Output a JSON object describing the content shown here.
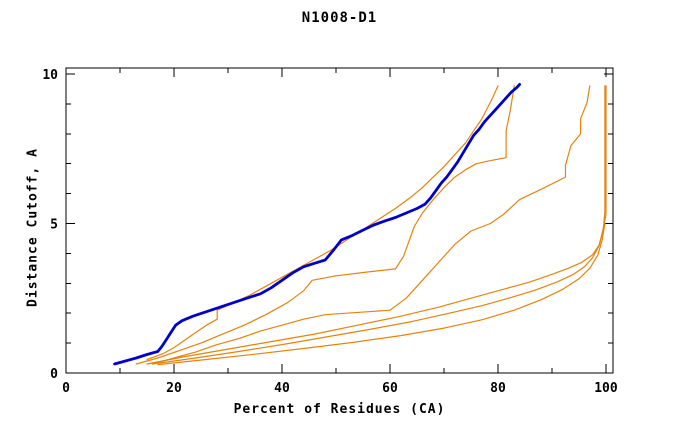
{
  "chart_data": {
    "type": "line",
    "title": "N1008-D1",
    "xlabel": "Percent of Residues (CA)",
    "ylabel": "Distance Cutoff, A",
    "xlim": [
      0,
      101.3
    ],
    "ylim": [
      0,
      10.2
    ],
    "x_major_ticks": [
      0,
      20,
      40,
      60,
      80,
      100
    ],
    "x_minor_ticks": [
      10,
      30,
      50,
      70,
      90
    ],
    "y_major_ticks": [
      0,
      5,
      10
    ],
    "y_minor_ticks": [
      1,
      2,
      3,
      4,
      6,
      7,
      8,
      9
    ],
    "grid": false,
    "legend": "none",
    "frame_color": "#000000",
    "series": [
      {
        "name": "orange-model-1",
        "color": "#e8820c",
        "width": 1.2,
        "points": [
          [
            15,
            0.45
          ],
          [
            18,
            0.65
          ],
          [
            20,
            0.85
          ],
          [
            22,
            1.1
          ],
          [
            24,
            1.35
          ],
          [
            26,
            1.6
          ],
          [
            28,
            1.8
          ],
          [
            28,
            2.1
          ],
          [
            31,
            2.35
          ],
          [
            34,
            2.6
          ],
          [
            37,
            2.9
          ],
          [
            40,
            3.2
          ],
          [
            43,
            3.5
          ],
          [
            46,
            3.8
          ],
          [
            49,
            4.1
          ],
          [
            52,
            4.45
          ],
          [
            55,
            4.8
          ],
          [
            58,
            5.15
          ],
          [
            61,
            5.5
          ],
          [
            64,
            5.9
          ],
          [
            66,
            6.2
          ],
          [
            68,
            6.55
          ],
          [
            70,
            6.9
          ],
          [
            72,
            7.3
          ],
          [
            74,
            7.7
          ],
          [
            75.5,
            8.1
          ],
          [
            77,
            8.5
          ],
          [
            78,
            8.85
          ],
          [
            79,
            9.2
          ],
          [
            80,
            9.6
          ]
        ]
      },
      {
        "name": "orange-model-2",
        "color": "#e8820c",
        "width": 1.2,
        "points": [
          [
            13,
            0.3
          ],
          [
            17,
            0.5
          ],
          [
            21,
            0.75
          ],
          [
            25,
            1.0
          ],
          [
            29,
            1.3
          ],
          [
            33,
            1.6
          ],
          [
            37,
            1.95
          ],
          [
            41,
            2.35
          ],
          [
            44,
            2.75
          ],
          [
            45.6,
            3.1
          ],
          [
            50,
            3.25
          ],
          [
            56,
            3.38
          ],
          [
            61,
            3.48
          ],
          [
            62.5,
            3.9
          ],
          [
            63.5,
            4.4
          ],
          [
            64.5,
            4.9
          ],
          [
            66,
            5.35
          ],
          [
            68,
            5.8
          ],
          [
            70,
            6.2
          ],
          [
            72,
            6.55
          ],
          [
            74,
            6.8
          ],
          [
            76,
            7.0
          ],
          [
            78.5,
            7.1
          ],
          [
            81.5,
            7.2
          ],
          [
            81.5,
            8.1
          ],
          [
            82.3,
            8.8
          ],
          [
            83,
            9.6
          ]
        ]
      },
      {
        "name": "orange-model-3",
        "color": "#e8820c",
        "width": 1.2,
        "points": [
          [
            16,
            0.3
          ],
          [
            20,
            0.5
          ],
          [
            24,
            0.7
          ],
          [
            28,
            0.95
          ],
          [
            32,
            1.15
          ],
          [
            36,
            1.4
          ],
          [
            40,
            1.6
          ],
          [
            44,
            1.8
          ],
          [
            48,
            1.95
          ],
          [
            52,
            2.0
          ],
          [
            56,
            2.05
          ],
          [
            60,
            2.1
          ],
          [
            63,
            2.5
          ],
          [
            66,
            3.1
          ],
          [
            69,
            3.7
          ],
          [
            72,
            4.3
          ],
          [
            75,
            4.75
          ],
          [
            78.6,
            5.0
          ],
          [
            81,
            5.3
          ],
          [
            84,
            5.8
          ],
          [
            87.5,
            6.1
          ],
          [
            92.5,
            6.55
          ],
          [
            92.5,
            6.95
          ],
          [
            93.5,
            7.6
          ],
          [
            95.3,
            8.0
          ],
          [
            95.3,
            8.5
          ],
          [
            96.5,
            9.05
          ],
          [
            97,
            9.6
          ]
        ]
      },
      {
        "name": "orange-model-4",
        "color": "#e8820c",
        "width": 1.2,
        "points": [
          [
            15,
            0.3
          ],
          [
            22,
            0.55
          ],
          [
            30,
            0.8
          ],
          [
            38,
            1.05
          ],
          [
            46,
            1.3
          ],
          [
            54,
            1.6
          ],
          [
            62,
            1.9
          ],
          [
            69,
            2.2
          ],
          [
            75,
            2.5
          ],
          [
            81,
            2.8
          ],
          [
            86,
            3.05
          ],
          [
            90,
            3.3
          ],
          [
            93,
            3.5
          ],
          [
            95.5,
            3.7
          ],
          [
            97.5,
            3.95
          ],
          [
            98.8,
            4.3
          ],
          [
            99.5,
            4.8
          ],
          [
            99.8,
            5.4
          ],
          [
            99.8,
            9.6
          ]
        ]
      },
      {
        "name": "orange-model-5",
        "color": "#e8820c",
        "width": 1.2,
        "points": [
          [
            16,
            0.3
          ],
          [
            24,
            0.5
          ],
          [
            32,
            0.72
          ],
          [
            40,
            0.95
          ],
          [
            48,
            1.2
          ],
          [
            56,
            1.45
          ],
          [
            64,
            1.72
          ],
          [
            71,
            2.0
          ],
          [
            77,
            2.25
          ],
          [
            82,
            2.5
          ],
          [
            87,
            2.78
          ],
          [
            91,
            3.05
          ],
          [
            94,
            3.3
          ],
          [
            96,
            3.55
          ],
          [
            97.5,
            3.85
          ],
          [
            98.7,
            4.25
          ],
          [
            99.4,
            4.75
          ],
          [
            100,
            5.3
          ],
          [
            100,
            9.6
          ]
        ]
      },
      {
        "name": "orange-model-6",
        "color": "#e8820c",
        "width": 1.2,
        "points": [
          [
            17,
            0.28
          ],
          [
            26,
            0.45
          ],
          [
            35,
            0.63
          ],
          [
            44,
            0.82
          ],
          [
            53,
            1.02
          ],
          [
            62,
            1.25
          ],
          [
            70,
            1.5
          ],
          [
            77,
            1.78
          ],
          [
            83,
            2.1
          ],
          [
            88,
            2.45
          ],
          [
            92,
            2.8
          ],
          [
            95,
            3.15
          ],
          [
            97,
            3.5
          ],
          [
            98.5,
            3.95
          ],
          [
            99.3,
            4.45
          ],
          [
            99.8,
            5.0
          ]
        ]
      },
      {
        "name": "blue-model",
        "color": "#0000cc",
        "width": 2.8,
        "points": [
          [
            9,
            0.3
          ],
          [
            11,
            0.4
          ],
          [
            13,
            0.5
          ],
          [
            15,
            0.62
          ],
          [
            17,
            0.72
          ],
          [
            17.8,
            0.9
          ],
          [
            18.6,
            1.12
          ],
          [
            19.4,
            1.35
          ],
          [
            20.3,
            1.6
          ],
          [
            21.5,
            1.75
          ],
          [
            23.5,
            1.9
          ],
          [
            26,
            2.05
          ],
          [
            28.5,
            2.2
          ],
          [
            31,
            2.35
          ],
          [
            33.5,
            2.5
          ],
          [
            36,
            2.65
          ],
          [
            38,
            2.85
          ],
          [
            40,
            3.1
          ],
          [
            42,
            3.35
          ],
          [
            44,
            3.55
          ],
          [
            46,
            3.67
          ],
          [
            48,
            3.78
          ],
          [
            49.5,
            4.1
          ],
          [
            51,
            4.45
          ],
          [
            53,
            4.6
          ],
          [
            55,
            4.78
          ],
          [
            57,
            4.95
          ],
          [
            59,
            5.08
          ],
          [
            61,
            5.2
          ],
          [
            63,
            5.35
          ],
          [
            65,
            5.5
          ],
          [
            66.5,
            5.65
          ],
          [
            67.5,
            5.85
          ],
          [
            68.5,
            6.1
          ],
          [
            69.5,
            6.35
          ],
          [
            70.5,
            6.55
          ],
          [
            71.5,
            6.8
          ],
          [
            72.5,
            7.05
          ],
          [
            73.5,
            7.35
          ],
          [
            74.5,
            7.65
          ],
          [
            75.5,
            7.95
          ],
          [
            76.5,
            8.15
          ],
          [
            77.5,
            8.4
          ],
          [
            78.5,
            8.6
          ],
          [
            79.5,
            8.8
          ],
          [
            80.5,
            9.0
          ],
          [
            81.5,
            9.2
          ],
          [
            82.5,
            9.4
          ],
          [
            83.5,
            9.55
          ],
          [
            84,
            9.65
          ]
        ]
      }
    ]
  }
}
